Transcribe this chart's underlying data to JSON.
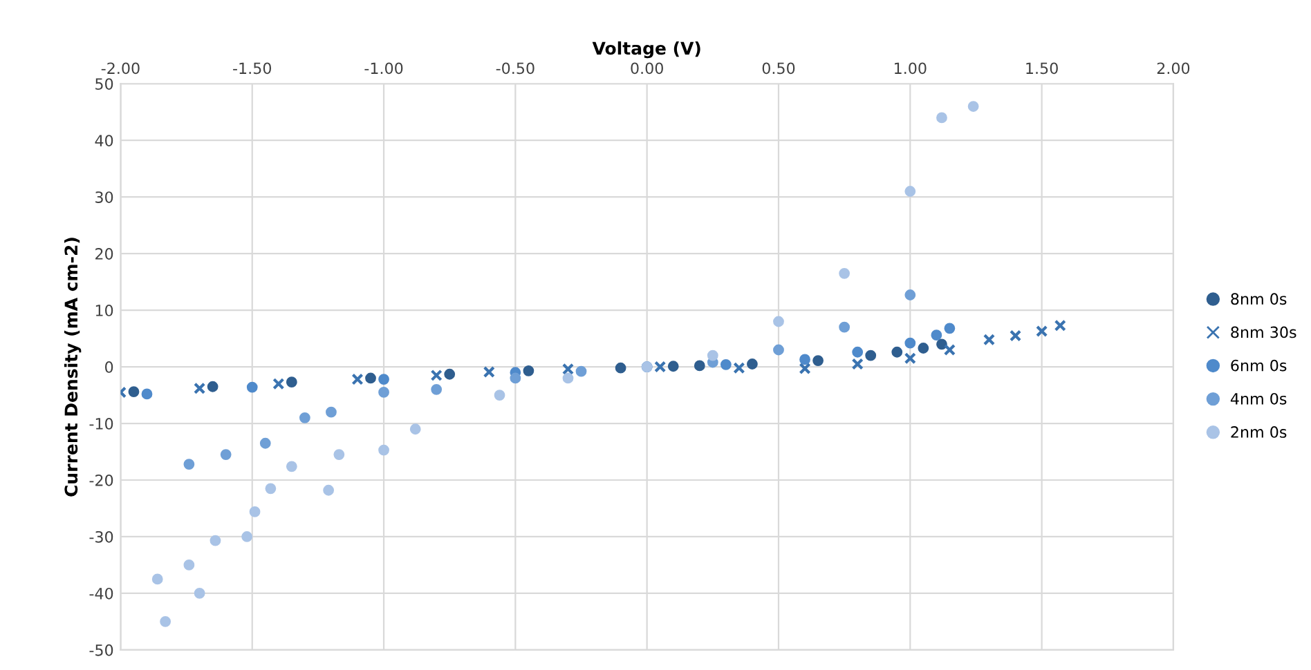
{
  "chart_data": {
    "type": "scatter",
    "xlabel": "Voltage (V)",
    "ylabel": "Current Density (mA cm-2)",
    "xlim": [
      -2,
      2
    ],
    "xticks": [
      {
        "value": -2,
        "label": "-2.00"
      },
      {
        "value": -1.5,
        "label": "-1.50"
      },
      {
        "value": -1,
        "label": "-1.00"
      },
      {
        "value": -0.5,
        "label": "-0.50"
      },
      {
        "value": 0,
        "label": "0.00"
      },
      {
        "value": 0.5,
        "label": "0.50"
      },
      {
        "value": 1,
        "label": "1.00"
      },
      {
        "value": 1.5,
        "label": "1.50"
      },
      {
        "value": 2,
        "label": "2.00"
      }
    ],
    "ylim": [
      -50,
      50
    ],
    "yticks": [
      -50,
      -40,
      -30,
      -20,
      -10,
      0,
      10,
      20,
      30,
      40,
      50
    ],
    "grid": true,
    "legend": "right",
    "series": [
      {
        "name": "8nm 0s",
        "color": "#2f5e8f",
        "marker": "circle",
        "x": [
          -1.95,
          -1.65,
          -1.35,
          -1.05,
          -0.75,
          -0.45,
          -0.1,
          0.1,
          0.2,
          0.4,
          0.65,
          0.85,
          0.95,
          1.05,
          1.12
        ],
        "values": [
          -4.4,
          -3.5,
          -2.7,
          -2.0,
          -1.3,
          -0.7,
          -0.2,
          0.1,
          0.2,
          0.5,
          1.1,
          2.0,
          2.6,
          3.3,
          4.0
        ]
      },
      {
        "name": "8nm 30s",
        "color": "#3a73b0",
        "marker": "cross",
        "x": [
          -2.0,
          -1.7,
          -1.4,
          -1.1,
          -0.8,
          -0.6,
          -0.3,
          0.05,
          0.35,
          0.6,
          0.8,
          1.0,
          1.15,
          1.3,
          1.4,
          1.5,
          1.57
        ],
        "values": [
          -4.5,
          -3.8,
          -3.0,
          -2.2,
          -1.5,
          -0.9,
          -0.4,
          0,
          -0.2,
          -0.3,
          0.5,
          1.5,
          3.0,
          4.8,
          5.5,
          6.3,
          7.3
        ]
      },
      {
        "name": "6nm 0s",
        "color": "#4f8acb",
        "marker": "circle",
        "x": [
          -1.9,
          -1.5,
          -1.0,
          -0.5,
          0,
          0.3,
          0.6,
          0.8,
          1.0,
          1.1,
          1.15
        ],
        "values": [
          -4.8,
          -3.6,
          -2.2,
          -1.0,
          0,
          0.4,
          1.3,
          2.6,
          4.2,
          5.6,
          6.8
        ]
      },
      {
        "name": "4nm 0s",
        "color": "#6f9fd6",
        "marker": "circle",
        "x": [
          -1.74,
          -1.6,
          -1.45,
          -1.3,
          -1.2,
          -1.0,
          -0.8,
          -0.5,
          -0.25,
          0,
          0.25,
          0.5,
          0.75,
          1.0
        ],
        "values": [
          -17.2,
          -15.5,
          -13.5,
          -9,
          -8,
          -4.5,
          -4,
          -2,
          -0.8,
          0,
          0.8,
          3,
          7,
          12.7
        ]
      },
      {
        "name": "2nm 0s",
        "color": "#a9c3e6",
        "marker": "circle",
        "x": [
          -1.83,
          -1.7,
          -1.86,
          -1.74,
          -1.64,
          -1.52,
          -1.49,
          -1.43,
          -1.35,
          -1.21,
          -1.17,
          -1.0,
          -0.88,
          -0.56,
          -0.3,
          0,
          0.25,
          0.5,
          0.75,
          1.0,
          1.12,
          1.24
        ],
        "values": [
          -45,
          -40,
          -37.5,
          -35,
          -30.7,
          -30,
          -25.6,
          -21.5,
          -17.6,
          -21.8,
          -15.5,
          -14.7,
          -11,
          -5,
          -2,
          0,
          2,
          8,
          16.5,
          31,
          44,
          46
        ]
      }
    ]
  }
}
